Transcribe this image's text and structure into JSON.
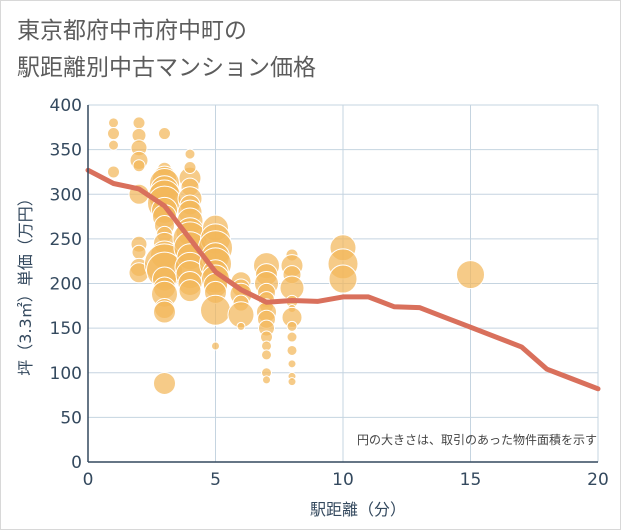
{
  "title_line1": "東京都府中市府中町の",
  "title_line2": "駅距離別中古マンション価格",
  "note": "円の大きさは、取引のあった物件面積を示す",
  "colors": {
    "bubble": "#f2b75a",
    "bubble_stroke": "#ffffff",
    "line": "#d9705c",
    "grid": "#c5d4e0",
    "text": "#34495e"
  },
  "chart_data": {
    "type": "scatter",
    "xlabel": "駅距離（分）",
    "ylabel": "坪（3.3㎡）単価（万円）",
    "xlim": [
      0,
      20
    ],
    "ylim": [
      0,
      400
    ],
    "x_ticks": [
      "0",
      "5",
      "10",
      "15",
      "20"
    ],
    "y_ticks": [
      "0",
      "50",
      "100",
      "150",
      "200",
      "250",
      "300",
      "350",
      "400"
    ],
    "grid": true,
    "trend_line": [
      [
        0,
        327
      ],
      [
        1,
        312
      ],
      [
        2,
        306
      ],
      [
        3,
        287
      ],
      [
        4,
        250
      ],
      [
        5,
        213
      ],
      [
        6,
        193
      ],
      [
        7,
        179
      ],
      [
        8,
        181
      ],
      [
        9,
        180
      ],
      [
        10,
        185
      ],
      [
        11,
        185
      ],
      [
        12,
        174
      ],
      [
        13,
        173
      ],
      [
        14,
        162
      ],
      [
        15,
        151
      ],
      [
        16,
        140
      ],
      [
        17,
        129
      ],
      [
        18,
        104
      ],
      [
        19,
        93
      ],
      [
        20,
        82
      ]
    ],
    "points": [
      {
        "x": 1,
        "y": 380,
        "r": 5
      },
      {
        "x": 1,
        "y": 368,
        "r": 6
      },
      {
        "x": 1,
        "y": 355,
        "r": 5
      },
      {
        "x": 1,
        "y": 325,
        "r": 6
      },
      {
        "x": 2,
        "y": 380,
        "r": 6
      },
      {
        "x": 2,
        "y": 366,
        "r": 7
      },
      {
        "x": 2,
        "y": 352,
        "r": 8
      },
      {
        "x": 2,
        "y": 338,
        "r": 9
      },
      {
        "x": 2,
        "y": 332,
        "r": 6
      },
      {
        "x": 2,
        "y": 300,
        "r": 10
      },
      {
        "x": 2,
        "y": 244,
        "r": 8
      },
      {
        "x": 2,
        "y": 235,
        "r": 7
      },
      {
        "x": 2,
        "y": 218,
        "r": 9
      },
      {
        "x": 2,
        "y": 212,
        "r": 10
      },
      {
        "x": 3,
        "y": 368,
        "r": 6
      },
      {
        "x": 3,
        "y": 328,
        "r": 7
      },
      {
        "x": 3,
        "y": 318,
        "r": 12
      },
      {
        "x": 3,
        "y": 312,
        "r": 15
      },
      {
        "x": 3,
        "y": 305,
        "r": 14
      },
      {
        "x": 3,
        "y": 298,
        "r": 16
      },
      {
        "x": 3,
        "y": 290,
        "r": 17
      },
      {
        "x": 3,
        "y": 282,
        "r": 13
      },
      {
        "x": 3,
        "y": 275,
        "r": 12
      },
      {
        "x": 3,
        "y": 265,
        "r": 10
      },
      {
        "x": 3,
        "y": 255,
        "r": 8
      },
      {
        "x": 3,
        "y": 245,
        "r": 11
      },
      {
        "x": 3,
        "y": 232,
        "r": 14
      },
      {
        "x": 3,
        "y": 222,
        "r": 20
      },
      {
        "x": 3,
        "y": 215,
        "r": 18
      },
      {
        "x": 3,
        "y": 205,
        "r": 12
      },
      {
        "x": 3,
        "y": 195,
        "r": 11
      },
      {
        "x": 3,
        "y": 188,
        "r": 13
      },
      {
        "x": 3,
        "y": 172,
        "r": 10
      },
      {
        "x": 3,
        "y": 168,
        "r": 11
      },
      {
        "x": 3,
        "y": 88,
        "r": 11
      },
      {
        "x": 4,
        "y": 318,
        "r": 11
      },
      {
        "x": 4,
        "y": 308,
        "r": 9
      },
      {
        "x": 4,
        "y": 295,
        "r": 12
      },
      {
        "x": 4,
        "y": 288,
        "r": 10
      },
      {
        "x": 4,
        "y": 280,
        "r": 12
      },
      {
        "x": 4,
        "y": 270,
        "r": 13
      },
      {
        "x": 4,
        "y": 258,
        "r": 14
      },
      {
        "x": 4,
        "y": 250,
        "r": 17
      },
      {
        "x": 4,
        "y": 240,
        "r": 16
      },
      {
        "x": 4,
        "y": 230,
        "r": 13
      },
      {
        "x": 4,
        "y": 218,
        "r": 15
      },
      {
        "x": 4,
        "y": 210,
        "r": 14
      },
      {
        "x": 4,
        "y": 200,
        "r": 12
      },
      {
        "x": 4,
        "y": 192,
        "r": 11
      },
      {
        "x": 4,
        "y": 345,
        "r": 5
      },
      {
        "x": 4,
        "y": 330,
        "r": 6
      },
      {
        "x": 5,
        "y": 262,
        "r": 13
      },
      {
        "x": 5,
        "y": 250,
        "r": 15
      },
      {
        "x": 5,
        "y": 240,
        "r": 17
      },
      {
        "x": 5,
        "y": 230,
        "r": 14
      },
      {
        "x": 5,
        "y": 222,
        "r": 16
      },
      {
        "x": 5,
        "y": 212,
        "r": 13
      },
      {
        "x": 5,
        "y": 205,
        "r": 14
      },
      {
        "x": 5,
        "y": 198,
        "r": 12
      },
      {
        "x": 5,
        "y": 190,
        "r": 11
      },
      {
        "x": 5,
        "y": 170,
        "r": 15
      },
      {
        "x": 5,
        "y": 130,
        "r": 4
      },
      {
        "x": 6,
        "y": 202,
        "r": 10
      },
      {
        "x": 6,
        "y": 195,
        "r": 9
      },
      {
        "x": 6,
        "y": 188,
        "r": 11
      },
      {
        "x": 6,
        "y": 178,
        "r": 8
      },
      {
        "x": 6,
        "y": 165,
        "r": 13
      },
      {
        "x": 6,
        "y": 152,
        "r": 4
      },
      {
        "x": 7,
        "y": 220,
        "r": 13
      },
      {
        "x": 7,
        "y": 210,
        "r": 11
      },
      {
        "x": 7,
        "y": 200,
        "r": 12
      },
      {
        "x": 7,
        "y": 190,
        "r": 9
      },
      {
        "x": 7,
        "y": 182,
        "r": 8
      },
      {
        "x": 7,
        "y": 175,
        "r": 7
      },
      {
        "x": 7,
        "y": 168,
        "r": 10
      },
      {
        "x": 7,
        "y": 160,
        "r": 9
      },
      {
        "x": 7,
        "y": 150,
        "r": 8
      },
      {
        "x": 7,
        "y": 140,
        "r": 6
      },
      {
        "x": 7,
        "y": 130,
        "r": 5
      },
      {
        "x": 7,
        "y": 120,
        "r": 5
      },
      {
        "x": 7,
        "y": 100,
        "r": 5
      },
      {
        "x": 7,
        "y": 92,
        "r": 4
      },
      {
        "x": 8,
        "y": 232,
        "r": 6
      },
      {
        "x": 8,
        "y": 220,
        "r": 11
      },
      {
        "x": 8,
        "y": 210,
        "r": 9
      },
      {
        "x": 8,
        "y": 195,
        "r": 12
      },
      {
        "x": 8,
        "y": 180,
        "r": 6
      },
      {
        "x": 8,
        "y": 172,
        "r": 4
      },
      {
        "x": 8,
        "y": 162,
        "r": 10
      },
      {
        "x": 8,
        "y": 152,
        "r": 5
      },
      {
        "x": 8,
        "y": 140,
        "r": 5
      },
      {
        "x": 8,
        "y": 125,
        "r": 5
      },
      {
        "x": 8,
        "y": 110,
        "r": 4
      },
      {
        "x": 8,
        "y": 96,
        "r": 4
      },
      {
        "x": 8,
        "y": 90,
        "r": 4
      },
      {
        "x": 10,
        "y": 240,
        "r": 13
      },
      {
        "x": 10,
        "y": 222,
        "r": 15
      },
      {
        "x": 10,
        "y": 205,
        "r": 14
      },
      {
        "x": 15,
        "y": 210,
        "r": 14
      }
    ]
  }
}
